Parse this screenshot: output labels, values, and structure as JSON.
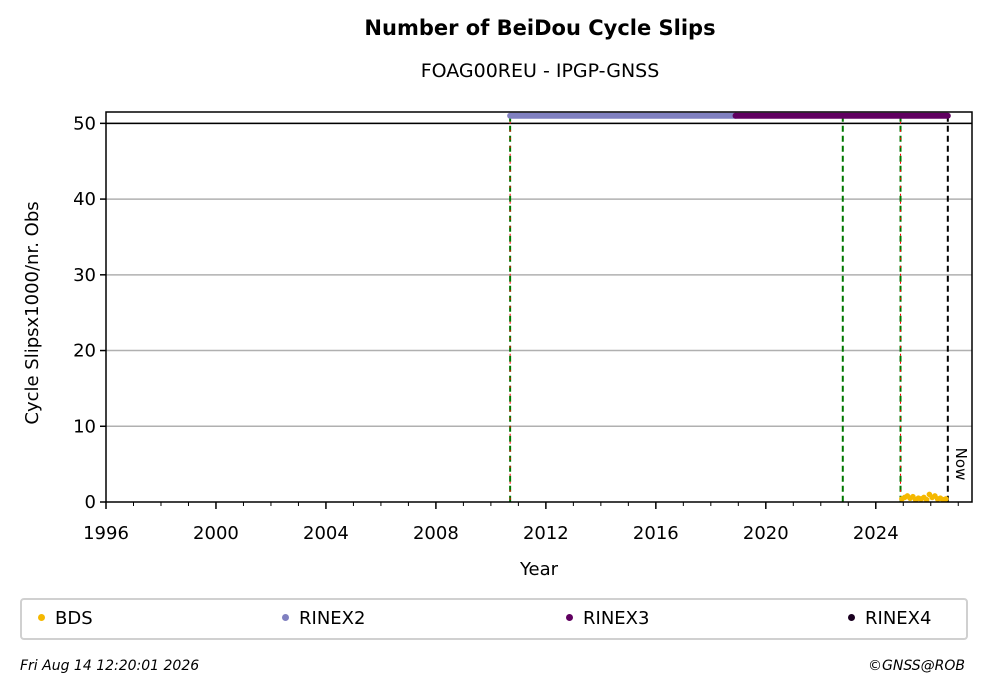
{
  "chart_data": {
    "type": "scatter",
    "title": "Number of BeiDou Cycle Slips",
    "subtitle": "FOAG00REU - IPGP-GNSS",
    "xlabel": "Year",
    "ylabel": "Cycle Slipsx1000/nr. Obs",
    "xlim": [
      1996,
      2027.5
    ],
    "ylim": [
      0,
      51.5
    ],
    "x_ticks": [
      1996,
      2000,
      2004,
      2008,
      2012,
      2016,
      2020,
      2024
    ],
    "y_ticks": [
      0,
      10,
      20,
      30,
      40,
      50
    ],
    "grid": "horizontal",
    "reference_line_y": 50,
    "vertical_lines": [
      {
        "x": 2010.7,
        "style": "green-dashed-with-red"
      },
      {
        "x": 2022.8,
        "style": "green-dashed"
      },
      {
        "x": 2024.9,
        "style": "green-dashed-with-red"
      },
      {
        "x": 2026.62,
        "style": "black-dashed",
        "label": "Now"
      }
    ],
    "rinex_bars": [
      {
        "name": "RINEX2",
        "start": 2010.7,
        "end": 2018.9,
        "y": 51,
        "color": "#8080c0"
      },
      {
        "name": "RINEX3",
        "start": 2018.9,
        "end": 2026.62,
        "y": 51,
        "color": "#600060"
      }
    ],
    "series": [
      {
        "name": "BDS",
        "color": "#f5b800",
        "x": [
          2024.95,
          2025.05,
          2025.15,
          2025.25,
          2025.35,
          2025.45,
          2025.55,
          2025.65,
          2025.75,
          2025.85,
          2025.95,
          2026.05,
          2026.15,
          2026.25,
          2026.35,
          2026.45,
          2026.55
        ],
        "y": [
          0.4,
          0.6,
          0.8,
          0.5,
          0.7,
          0.3,
          0.5,
          0.4,
          0.6,
          0.3,
          1.0,
          0.6,
          0.8,
          0.4,
          0.5,
          0.3,
          0.4
        ]
      }
    ],
    "legend": [
      {
        "name": "BDS",
        "color": "#f5b800"
      },
      {
        "name": "RINEX2",
        "color": "#8080c0"
      },
      {
        "name": "RINEX3",
        "color": "#600060"
      },
      {
        "name": "RINEX4",
        "color": "#1a0020"
      }
    ],
    "legend_placement": "bottom"
  },
  "footer": {
    "timestamp": "Fri Aug 14 12:20:01 2026",
    "copyright": "©GNSS@ROB"
  }
}
